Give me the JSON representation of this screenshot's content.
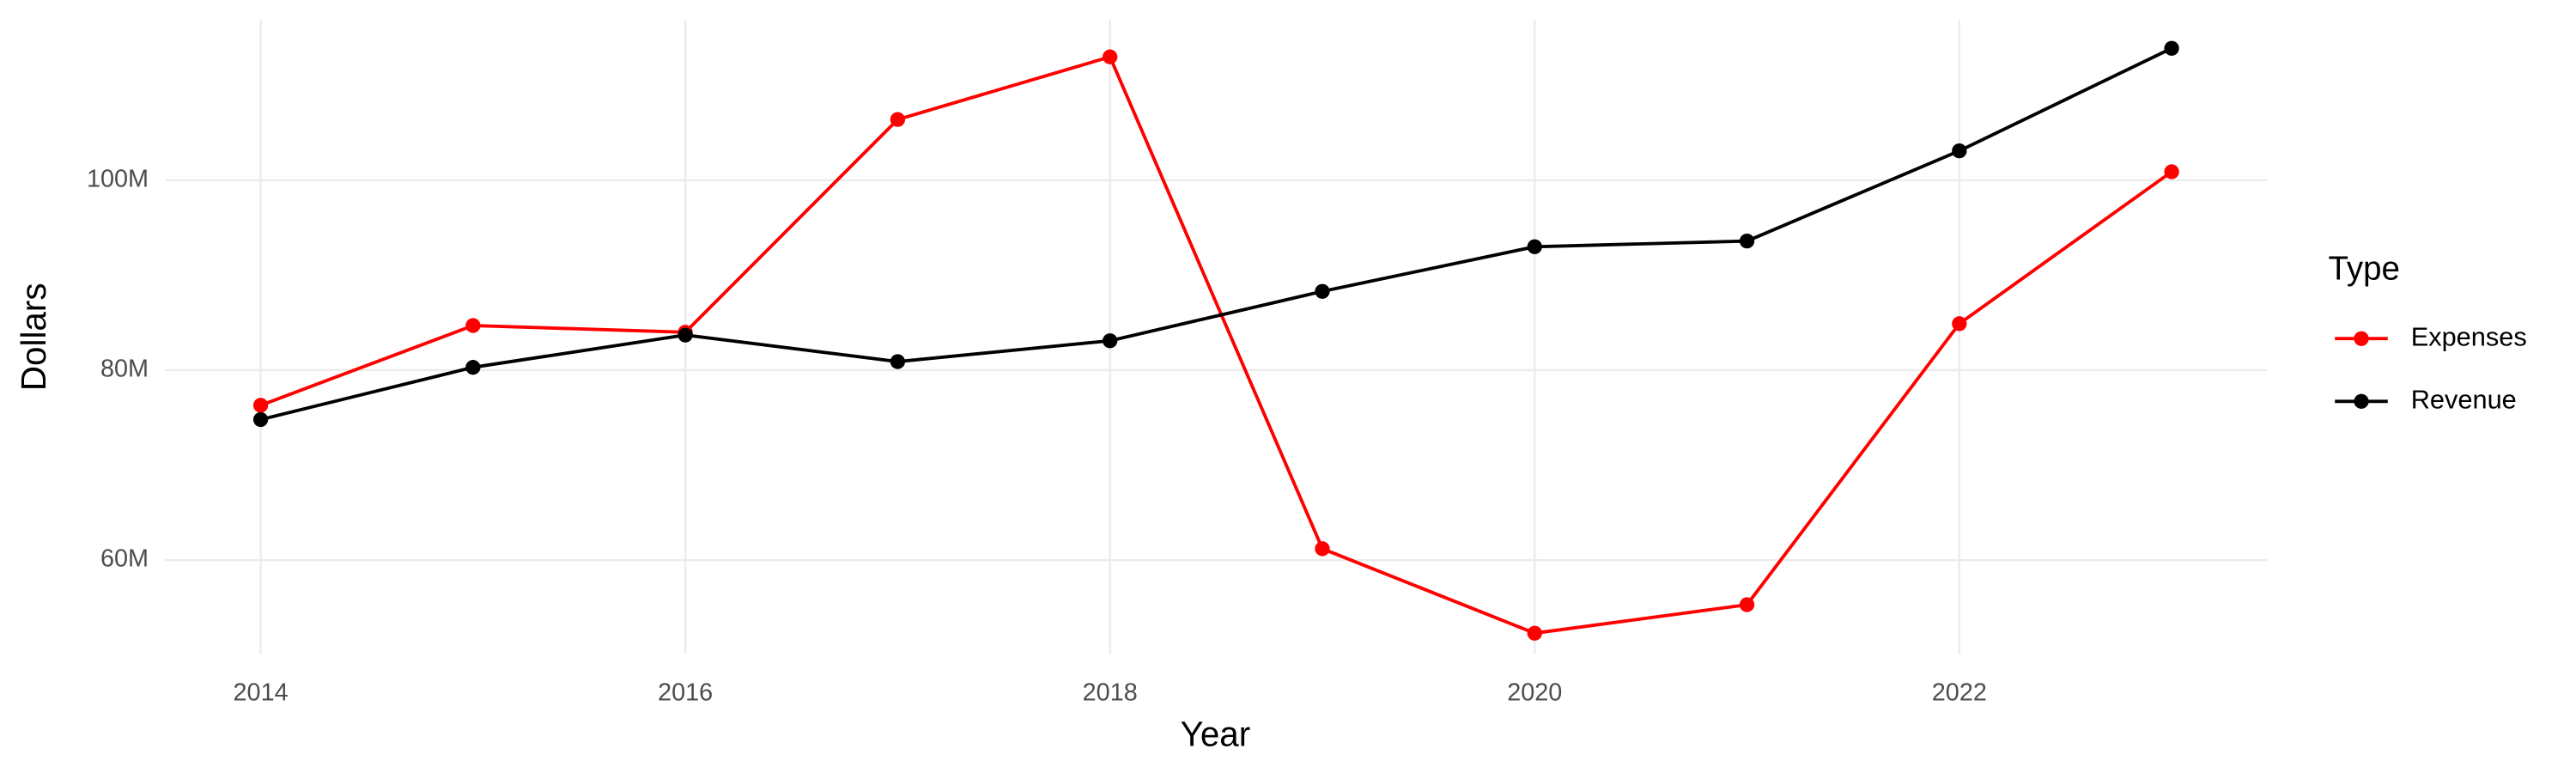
{
  "chart_data": {
    "type": "line",
    "x_label": "Year",
    "y_label": "Dollars",
    "legend_title": "Type",
    "legend_position": "right",
    "grid": true,
    "x": [
      2014,
      2015,
      2016,
      2017,
      2018,
      2019,
      2020,
      2021,
      2022,
      2023
    ],
    "series": [
      {
        "name": "Expenses",
        "color": "#ff0000",
        "values": [
          76300000,
          84700000,
          84000000,
          106400000,
          113000000,
          61200000,
          52300000,
          55300000,
          84900000,
          100900000
        ]
      },
      {
        "name": "Revenue",
        "color": "#000000",
        "values": [
          74800000,
          80300000,
          83700000,
          80900000,
          83100000,
          88300000,
          93000000,
          93600000,
          103100000,
          113900000
        ]
      }
    ],
    "xlim": [
      2013.55,
      2023.45
    ],
    "xticks": [
      2014,
      2016,
      2018,
      2020,
      2022
    ],
    "ylim": [
      50100000,
      116900000
    ],
    "yticks": [
      {
        "value": 60000000,
        "label": "60M"
      },
      {
        "value": 80000000,
        "label": "80M"
      },
      {
        "value": 100000000,
        "label": "100M"
      }
    ]
  }
}
